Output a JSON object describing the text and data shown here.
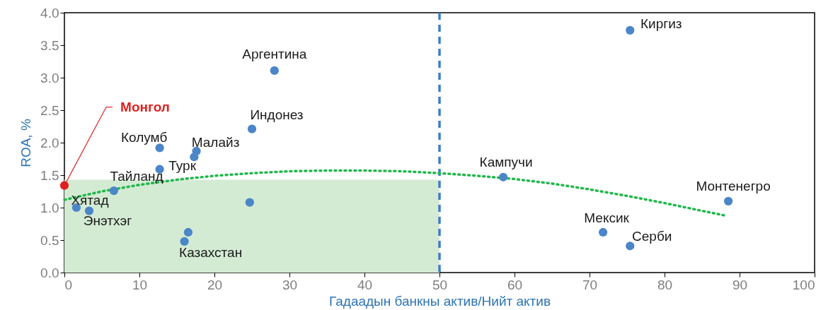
{
  "chart_data": {
    "type": "scatter",
    "xlabel": "Гадаадын банкны актив/Нийт актив",
    "ylabel": "ROA, %",
    "xlim": [
      0,
      100
    ],
    "xticks": [
      0,
      10,
      20,
      30,
      40,
      50,
      60,
      70,
      80,
      90,
      100
    ],
    "ylim": [
      0,
      4
    ],
    "yticks": [
      {
        "value": 0,
        "label": "0.0"
      },
      0.5,
      {
        "value": 1,
        "label": "1.0"
      },
      1.5,
      {
        "value": 2,
        "label": "2.0"
      },
      2.5,
      {
        "value": 3,
        "label": "3.0"
      },
      3.5,
      {
        "value": 4,
        "label": "4.0"
      }
    ],
    "grid": false,
    "series": [
      {
        "type": "area",
        "color": "#d3ebd3",
        "x": [
          0,
          50
        ],
        "values": [
          1.43,
          1.43
        ]
      },
      {
        "color": "#e02020",
        "marker": "circle",
        "x": [
          0
        ],
        "values": [
          1.34
        ]
      },
      {
        "color": "#4a86c8",
        "marker": "circle",
        "x": [
          1.6,
          3.3,
          6.6,
          12.7,
          12.7,
          17.6,
          17.3,
          25,
          28,
          24.7,
          16.0,
          16.5,
          58.5,
          75.4,
          71.8,
          75.4,
          88.5
        ],
        "values": [
          1.0,
          0.95,
          1.26,
          1.92,
          1.59,
          1.87,
          1.78,
          2.21,
          3.11,
          1.08,
          0.48,
          0.62,
          1.47,
          3.73,
          0.62,
          0.41,
          1.1
        ]
      },
      {
        "type": "line",
        "line_style": "dotted",
        "color": "#1fb84a",
        "x": [
          0,
          5,
          10,
          15,
          20,
          25,
          30,
          35,
          40,
          45,
          50,
          55,
          60,
          65,
          70,
          75,
          80,
          85,
          88
        ],
        "values": [
          1.12,
          1.25,
          1.35,
          1.43,
          1.49,
          1.53,
          1.56,
          1.57,
          1.57,
          1.56,
          1.53,
          1.49,
          1.44,
          1.37,
          1.28,
          1.18,
          1.07,
          0.95,
          0.88
        ]
      }
    ],
    "ref_lines": [
      {
        "axis": "x",
        "value": 50,
        "color": "#3f7cc8",
        "line_style": "dashed"
      }
    ],
    "annotations": [
      {
        "text": "Монгол",
        "x": 0,
        "y": 1.34
      },
      {
        "text": "Хятад",
        "x": 1.6,
        "y": 1.0
      },
      {
        "text": "Энэтхэг",
        "x": 3.3,
        "y": 0.95
      },
      {
        "text": "Тайланд",
        "x": 6.6,
        "y": 1.26
      },
      {
        "text": "Колумб",
        "x": 12.7,
        "y": 1.92
      },
      {
        "text": "Турк",
        "x": 12.7,
        "y": 1.59
      },
      {
        "text": "Малайз",
        "x": 17.6,
        "y": 1.87
      },
      {
        "text": "Индонез",
        "x": 25,
        "y": 2.21
      },
      {
        "text": "Аргентина",
        "x": 28,
        "y": 3.11
      },
      {
        "text": "Казахстан",
        "x": 16.0,
        "y": 0.48
      },
      {
        "text": "Кампучи",
        "x": 58.5,
        "y": 1.47
      },
      {
        "text": "Киргиз",
        "x": 75.4,
        "y": 3.73
      },
      {
        "text": "Мексик",
        "x": 71.8,
        "y": 0.62
      },
      {
        "text": "Серби",
        "x": 75.4,
        "y": 0.41
      },
      {
        "text": "Монтенегро",
        "x": 88.5,
        "y": 1.1
      }
    ]
  }
}
